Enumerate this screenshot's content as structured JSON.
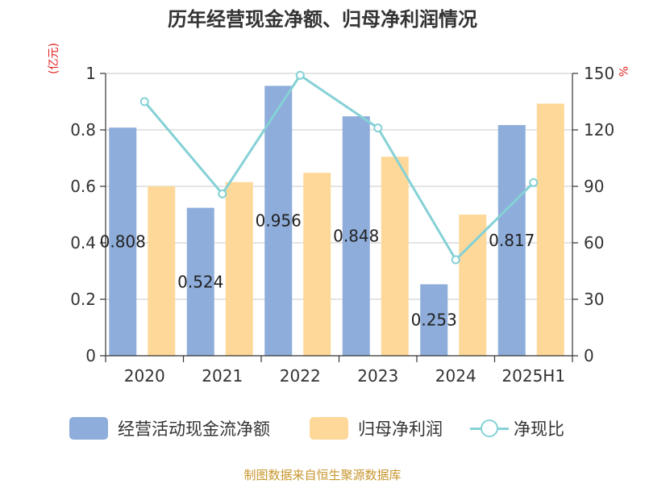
{
  "title": "历年经营现金净额、归母净利润情况",
  "unit_left": "(亿元)",
  "unit_right": "%",
  "footer": "制图数据来自恒生聚源数据库",
  "colors": {
    "cash": "#8eaddb",
    "profit": "#fed899",
    "ratio": "#85d1d6"
  },
  "chart_data": {
    "type": "bar",
    "title": "历年经营现金净额、归母净利润情况",
    "categories": [
      "2020",
      "2021",
      "2022",
      "2023",
      "2024",
      "2025H1"
    ],
    "ylabel": "(亿元)",
    "ylabel_right": "%",
    "ylim": [
      0,
      1
    ],
    "ylim_right": [
      0,
      150
    ],
    "yticks": [
      0,
      0.2,
      0.4,
      0.6,
      0.8,
      1
    ],
    "yticks_right": [
      0,
      30,
      60,
      90,
      120,
      150
    ],
    "grid": true,
    "legend_position": "bottom",
    "series": [
      {
        "name": "经营活动现金流净额",
        "type": "bar",
        "axis": "left",
        "values": [
          0.808,
          0.524,
          0.956,
          0.848,
          0.253,
          0.817
        ],
        "labels": [
          "0.808",
          "0.524",
          "0.956",
          "0.848",
          "0.253",
          "0.817"
        ]
      },
      {
        "name": "归母净利润",
        "type": "bar",
        "axis": "left",
        "values": [
          0.6,
          0.615,
          0.648,
          0.705,
          0.5,
          0.893
        ]
      },
      {
        "name": "净现比",
        "type": "line",
        "axis": "right",
        "values": [
          135,
          86,
          149,
          121,
          51,
          92
        ]
      }
    ]
  }
}
